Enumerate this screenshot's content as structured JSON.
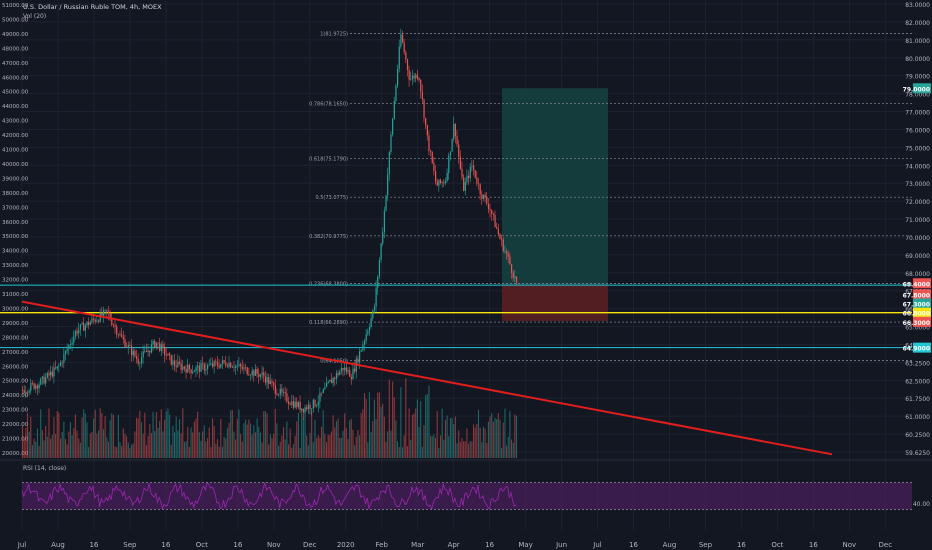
{
  "symbol_line": "U.S. Dollar / Russian Ruble TOM, 4h, MOEX",
  "volume_label": "Vol (20)",
  "rsi_label": "RSI (14, close)",
  "colors": {
    "background": "#131722",
    "grid": "#1e2230",
    "up": "#26a69a",
    "down": "#ef5350",
    "trendline": "#e01e1e",
    "yellow_line": "#f5e50b",
    "cyan_line": "#22c7d6",
    "fib_line": "#8a8f9b",
    "rsi_line": "#9c27b0",
    "rsi_band": "#4a1f5c",
    "target_zone": "#16403f",
    "stop_zone": "#5b1f22"
  },
  "chart_data": {
    "type": "candlestick",
    "title": "U.S. Dollar / Russian Ruble TOM, 4h, MOEX",
    "x_ticks": [
      "Jul",
      "Aug",
      "16",
      "Sep",
      "16",
      "Oct",
      "16",
      "Nov",
      "Dec",
      "2020",
      "Feb",
      "Mar",
      "Apr",
      "16",
      "May",
      "Jun",
      "Jul",
      "16",
      "Aug",
      "Sep",
      "16",
      "Oct",
      "16",
      "Nov",
      "Dec"
    ],
    "y_right": {
      "range": [
        58.9,
        83.8
      ],
      "ticks": [
        "83.0000",
        "82.0000",
        "81.0000",
        "80.0000",
        "79.0000",
        "78.0000",
        "77.0000",
        "76.0000",
        "75.0000",
        "74.0000",
        "73.0000",
        "72.0000",
        "71.0000",
        "70.0000",
        "69.0000",
        "68.0000",
        "67.0000",
        "66.0000",
        "65.0000",
        "64.0000",
        "63.2500",
        "62.5000",
        "61.7500",
        "61.0000",
        "60.2500",
        "59.6250"
      ],
      "highlighted_labels": [
        {
          "text": "79.0000",
          "value": 79.0,
          "color": "#26a69a"
        },
        {
          "text": "68.4000",
          "value": 68.4,
          "color": "#ef5350"
        },
        {
          "text": "67.8000",
          "value": 67.8,
          "color": "#ef5350"
        },
        {
          "text": "67.3000",
          "value": 67.3,
          "color": "#26a69a"
        },
        {
          "text": "66.8000",
          "value": 66.8,
          "color": "#f5e50b"
        },
        {
          "text": "66.3000",
          "value": 66.3,
          "color": "#ef5350"
        },
        {
          "text": "64.9000",
          "value": 64.9,
          "color": "#22c7d6"
        }
      ]
    },
    "y_left_volume_ticks": [
      "51000.00",
      "50000.00",
      "49000.00",
      "48000.00",
      "47000.00",
      "46000.00",
      "45000.00",
      "44000.00",
      "43000.00",
      "42000.00",
      "41000.00",
      "40000.00",
      "39000.00",
      "38000.00",
      "37000.00",
      "36000.00",
      "35000.00",
      "34000.00",
      "33000.00",
      "32000.00",
      "31000.00",
      "30000.00",
      "29000.00",
      "28000.00",
      "27000.00",
      "26000.00",
      "25000.00",
      "24000.00",
      "23000.00",
      "22000.00",
      "21000.00",
      "20000.00"
    ],
    "fib_levels": [
      {
        "label": "1(81.9725)",
        "value": 81.97
      },
      {
        "label": "0.786(78.1650)",
        "value": 78.17
      },
      {
        "label": "0.618(75.1790)",
        "value": 75.18
      },
      {
        "label": "0.5(73.0775)",
        "value": 73.08
      },
      {
        "label": "0.382(70.9775)",
        "value": 70.98
      },
      {
        "label": "0.236(68.3800)",
        "value": 68.38
      },
      {
        "label": "0.118(66.2890)",
        "value": 66.29
      },
      {
        "label": "0(64.1950)",
        "value": 64.2
      }
    ],
    "horizontal_lines": [
      {
        "name": "cyan-upper",
        "value": 68.3
      },
      {
        "name": "yellow",
        "value": 66.8
      },
      {
        "name": "cyan-lower",
        "value": 64.9
      }
    ],
    "trendline": {
      "start": {
        "x": 0,
        "y": 67.4
      },
      "end": {
        "x": 1.0,
        "y": 59.1
      }
    },
    "position": {
      "entry": 68.3,
      "target": 79.0,
      "stop": 66.35
    },
    "price_path": [
      {
        "t": 0,
        "v": 62.6
      },
      {
        "t": 0.02,
        "v": 63.0
      },
      {
        "t": 0.04,
        "v": 63.8
      },
      {
        "t": 0.06,
        "v": 65.8
      },
      {
        "t": 0.08,
        "v": 66.4
      },
      {
        "t": 0.095,
        "v": 66.8
      },
      {
        "t": 0.11,
        "v": 65.5
      },
      {
        "t": 0.13,
        "v": 64.2
      },
      {
        "t": 0.15,
        "v": 65.2
      },
      {
        "t": 0.17,
        "v": 64.0
      },
      {
        "t": 0.19,
        "v": 63.7
      },
      {
        "t": 0.21,
        "v": 63.9
      },
      {
        "t": 0.23,
        "v": 64.1
      },
      {
        "t": 0.25,
        "v": 63.7
      },
      {
        "t": 0.27,
        "v": 63.4
      },
      {
        "t": 0.285,
        "v": 62.6
      },
      {
        "t": 0.3,
        "v": 62.0
      },
      {
        "t": 0.315,
        "v": 61.6
      },
      {
        "t": 0.33,
        "v": 61.9
      },
      {
        "t": 0.345,
        "v": 63.0
      },
      {
        "t": 0.36,
        "v": 63.8
      },
      {
        "t": 0.37,
        "v": 63.4
      },
      {
        "t": 0.385,
        "v": 65.5
      },
      {
        "t": 0.395,
        "v": 67.0
      },
      {
        "t": 0.405,
        "v": 71.5
      },
      {
        "t": 0.415,
        "v": 77.0
      },
      {
        "t": 0.425,
        "v": 81.9
      },
      {
        "t": 0.435,
        "v": 79.5
      },
      {
        "t": 0.445,
        "v": 79.8
      },
      {
        "t": 0.455,
        "v": 76.2
      },
      {
        "t": 0.465,
        "v": 73.7
      },
      {
        "t": 0.475,
        "v": 74.0
      },
      {
        "t": 0.485,
        "v": 77.1
      },
      {
        "t": 0.495,
        "v": 73.5
      },
      {
        "t": 0.505,
        "v": 74.8
      },
      {
        "t": 0.515,
        "v": 73.3
      },
      {
        "t": 0.525,
        "v": 72.5
      },
      {
        "t": 0.535,
        "v": 71.0
      },
      {
        "t": 0.545,
        "v": 69.8
      },
      {
        "t": 0.555,
        "v": 68.4
      }
    ],
    "rsi": {
      "levels": [
        70,
        30
      ],
      "ticks": [
        "40.00"
      ]
    }
  }
}
